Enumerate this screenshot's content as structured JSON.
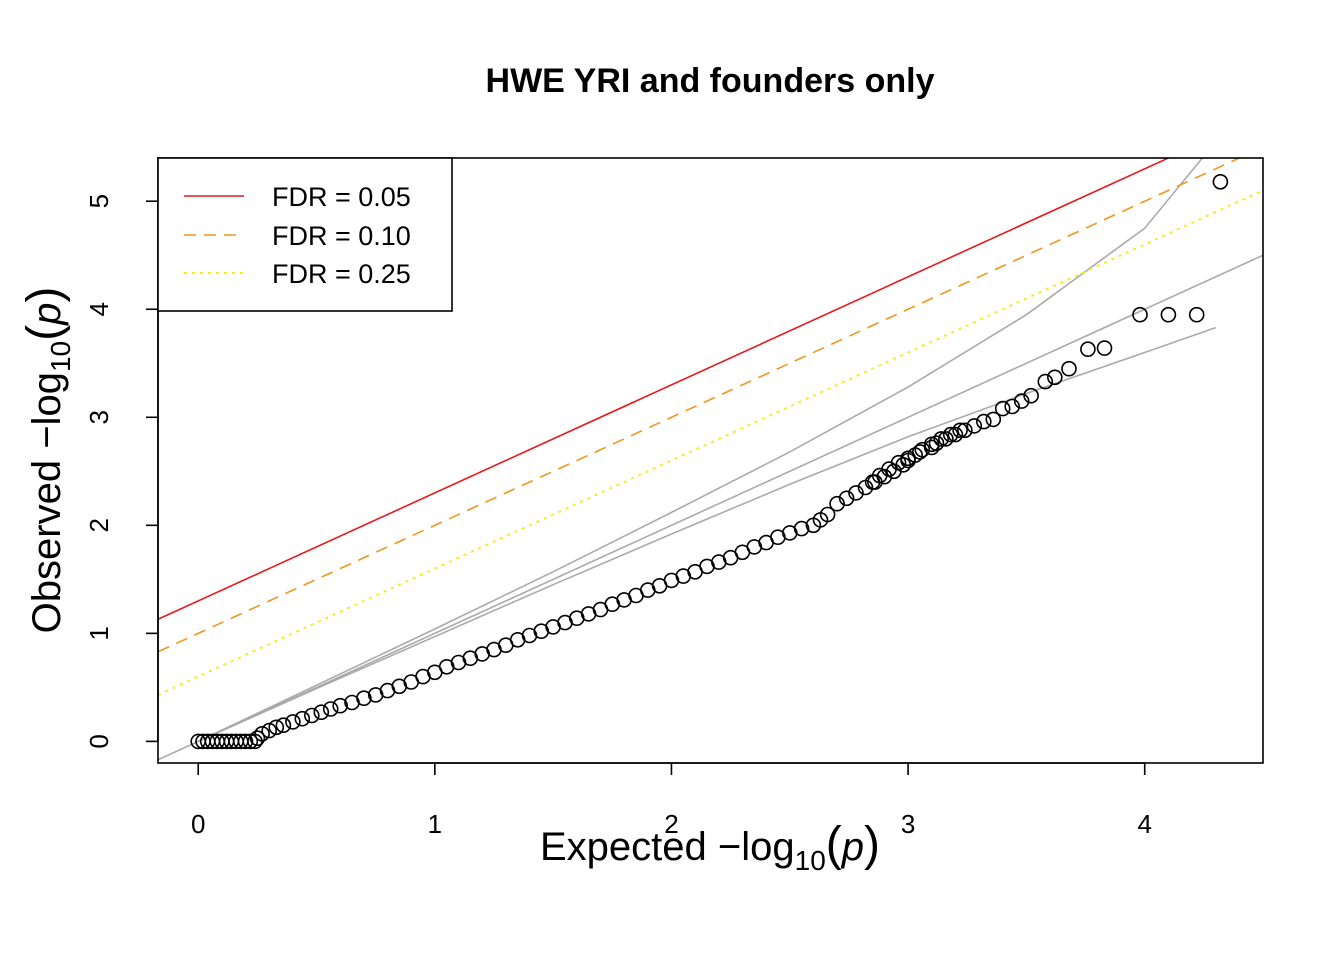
{
  "chart_data": {
    "type": "scatter",
    "title": "HWE YRI and founders only",
    "xlabel": {
      "prefix": "Expected  −log",
      "sub": "10",
      "open": "(",
      "var": "p",
      "close": ")"
    },
    "ylabel": {
      "prefix": "Observed  −log",
      "sub": "10",
      "open": "(",
      "var": "p",
      "close": ")"
    },
    "xlim": [
      -0.17,
      4.5
    ],
    "ylim": [
      -0.2,
      5.4
    ],
    "x_ticks": [
      "0",
      "1",
      "2",
      "3",
      "4"
    ],
    "y_ticks": [
      "0",
      "1",
      "2",
      "3",
      "4",
      "5"
    ],
    "legend": {
      "position": "top-left",
      "entries": [
        {
          "label": "FDR = 0.05",
          "color": "#e8191c",
          "style": "solid"
        },
        {
          "label": "FDR = 0.10",
          "color": "#f0961e",
          "style": "dashed"
        },
        {
          "label": "FDR = 0.25",
          "color": "#ffe81e",
          "style": "dotted"
        }
      ]
    },
    "fdr_lines": [
      {
        "label": "FDR = 0.05",
        "intercept": 1.3,
        "slope": 1.0
      },
      {
        "label": "FDR = 0.10",
        "intercept": 1.0,
        "slope": 1.0
      },
      {
        "label": "FDR = 0.25",
        "intercept": 0.6,
        "slope": 1.0
      }
    ],
    "reference_line": {
      "color": "#aaaaaa",
      "intercept": 0,
      "slope": 1
    },
    "confidence_band": {
      "color": "#aaaaaa",
      "upper": [
        [
          0,
          0
        ],
        [
          0.5,
          0.52
        ],
        [
          1,
          1.04
        ],
        [
          1.5,
          1.57
        ],
        [
          2,
          2.12
        ],
        [
          2.5,
          2.68
        ],
        [
          3,
          3.28
        ],
        [
          3.5,
          3.95
        ],
        [
          4,
          4.75
        ],
        [
          4.3,
          5.55
        ]
      ],
      "lower": [
        [
          0,
          0
        ],
        [
          0.5,
          0.49
        ],
        [
          1,
          0.97
        ],
        [
          1.5,
          1.45
        ],
        [
          2,
          1.92
        ],
        [
          2.5,
          2.38
        ],
        [
          3,
          2.82
        ],
        [
          3.5,
          3.22
        ],
        [
          4,
          3.6
        ],
        [
          4.3,
          3.83
        ]
      ]
    },
    "points": [
      [
        0.0,
        0.0
      ],
      [
        0.02,
        0.0
      ],
      [
        0.04,
        0.0
      ],
      [
        0.06,
        0.0
      ],
      [
        0.08,
        0.0
      ],
      [
        0.1,
        0.0
      ],
      [
        0.12,
        0.0
      ],
      [
        0.14,
        0.0
      ],
      [
        0.16,
        0.0
      ],
      [
        0.18,
        0.0
      ],
      [
        0.2,
        0.0
      ],
      [
        0.22,
        0.0
      ],
      [
        0.24,
        0.0
      ],
      [
        0.25,
        0.03
      ],
      [
        0.27,
        0.07
      ],
      [
        0.3,
        0.1
      ],
      [
        0.33,
        0.13
      ],
      [
        0.36,
        0.15
      ],
      [
        0.4,
        0.18
      ],
      [
        0.44,
        0.21
      ],
      [
        0.48,
        0.24
      ],
      [
        0.52,
        0.27
      ],
      [
        0.56,
        0.3
      ],
      [
        0.6,
        0.33
      ],
      [
        0.65,
        0.36
      ],
      [
        0.7,
        0.4
      ],
      [
        0.75,
        0.43
      ],
      [
        0.8,
        0.47
      ],
      [
        0.85,
        0.51
      ],
      [
        0.9,
        0.55
      ],
      [
        0.95,
        0.6
      ],
      [
        1.0,
        0.64
      ],
      [
        1.05,
        0.69
      ],
      [
        1.1,
        0.73
      ],
      [
        1.15,
        0.77
      ],
      [
        1.2,
        0.81
      ],
      [
        1.25,
        0.85
      ],
      [
        1.3,
        0.89
      ],
      [
        1.35,
        0.94
      ],
      [
        1.4,
        0.98
      ],
      [
        1.45,
        1.02
      ],
      [
        1.5,
        1.06
      ],
      [
        1.55,
        1.1
      ],
      [
        1.6,
        1.14
      ],
      [
        1.65,
        1.18
      ],
      [
        1.7,
        1.22
      ],
      [
        1.75,
        1.27
      ],
      [
        1.8,
        1.31
      ],
      [
        1.85,
        1.35
      ],
      [
        1.9,
        1.4
      ],
      [
        1.95,
        1.44
      ],
      [
        2.0,
        1.49
      ],
      [
        2.05,
        1.53
      ],
      [
        2.1,
        1.57
      ],
      [
        2.15,
        1.62
      ],
      [
        2.2,
        1.66
      ],
      [
        2.25,
        1.7
      ],
      [
        2.3,
        1.75
      ],
      [
        2.35,
        1.8
      ],
      [
        2.4,
        1.84
      ],
      [
        2.45,
        1.89
      ],
      [
        2.5,
        1.93
      ],
      [
        2.55,
        1.97
      ],
      [
        2.6,
        2.0
      ],
      [
        2.63,
        2.05
      ],
      [
        2.66,
        2.1
      ],
      [
        2.7,
        2.2
      ],
      [
        2.74,
        2.25
      ],
      [
        2.78,
        2.3
      ],
      [
        2.82,
        2.35
      ],
      [
        2.86,
        2.4
      ],
      [
        2.9,
        2.45
      ],
      [
        2.94,
        2.5
      ],
      [
        2.98,
        2.56
      ],
      [
        3.0,
        2.6
      ],
      [
        3.03,
        2.65
      ],
      [
        3.06,
        2.7
      ],
      [
        3.1,
        2.75
      ],
      [
        3.14,
        2.8
      ],
      [
        3.18,
        2.84
      ],
      [
        3.22,
        2.88
      ],
      [
        2.85,
        2.4
      ],
      [
        2.88,
        2.46
      ],
      [
        2.92,
        2.52
      ],
      [
        2.96,
        2.58
      ],
      [
        3.0,
        2.62
      ],
      [
        3.05,
        2.68
      ],
      [
        3.1,
        2.72
      ],
      [
        3.12,
        2.76
      ],
      [
        3.16,
        2.8
      ],
      [
        3.2,
        2.84
      ],
      [
        3.24,
        2.88
      ],
      [
        3.28,
        2.92
      ],
      [
        3.32,
        2.96
      ],
      [
        3.36,
        2.98
      ],
      [
        3.4,
        3.08
      ],
      [
        3.44,
        3.1
      ],
      [
        3.48,
        3.15
      ],
      [
        3.52,
        3.2
      ],
      [
        3.58,
        3.33
      ],
      [
        3.62,
        3.37
      ],
      [
        3.68,
        3.45
      ],
      [
        3.76,
        3.63
      ],
      [
        3.83,
        3.64
      ],
      [
        3.98,
        3.95
      ],
      [
        4.1,
        3.95
      ],
      [
        4.22,
        3.95
      ],
      [
        4.32,
        5.18
      ]
    ]
  }
}
